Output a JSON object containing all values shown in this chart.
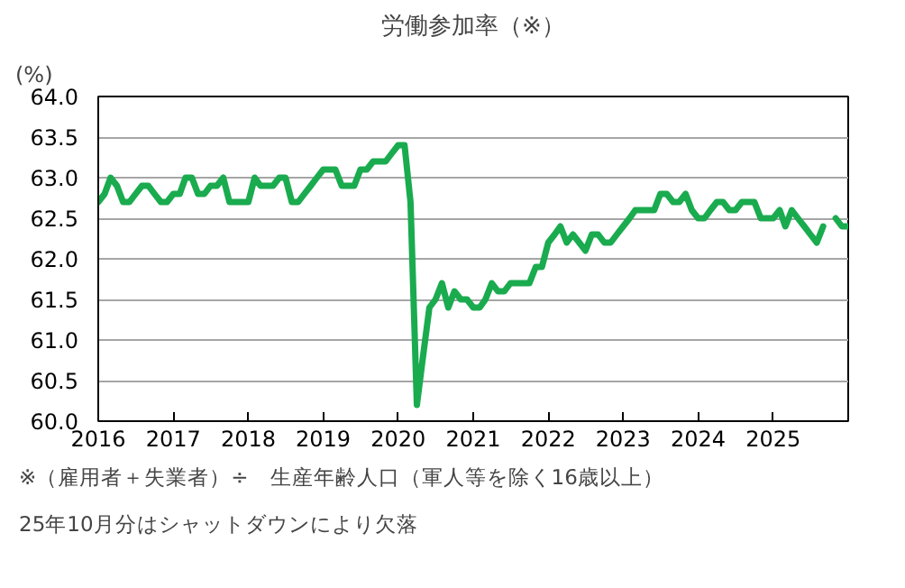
{
  "chart_data": {
    "type": "line",
    "title": "労働参加率（※）",
    "ylabel": "(%)",
    "x": [
      "2016-01",
      "2016-02",
      "2016-03",
      "2016-04",
      "2016-05",
      "2016-06",
      "2016-07",
      "2016-08",
      "2016-09",
      "2016-10",
      "2016-11",
      "2016-12",
      "2017-01",
      "2017-02",
      "2017-03",
      "2017-04",
      "2017-05",
      "2017-06",
      "2017-07",
      "2017-08",
      "2017-09",
      "2017-10",
      "2017-11",
      "2017-12",
      "2018-01",
      "2018-02",
      "2018-03",
      "2018-04",
      "2018-05",
      "2018-06",
      "2018-07",
      "2018-08",
      "2018-09",
      "2018-10",
      "2018-11",
      "2018-12",
      "2019-01",
      "2019-02",
      "2019-03",
      "2019-04",
      "2019-05",
      "2019-06",
      "2019-07",
      "2019-08",
      "2019-09",
      "2019-10",
      "2019-11",
      "2019-12",
      "2020-01",
      "2020-02",
      "2020-03",
      "2020-04",
      "2020-05",
      "2020-06",
      "2020-07",
      "2020-08",
      "2020-09",
      "2020-10",
      "2020-11",
      "2020-12",
      "2021-01",
      "2021-02",
      "2021-03",
      "2021-04",
      "2021-05",
      "2021-06",
      "2021-07",
      "2021-08",
      "2021-09",
      "2021-10",
      "2021-11",
      "2021-12",
      "2022-01",
      "2022-02",
      "2022-03",
      "2022-04",
      "2022-05",
      "2022-06",
      "2022-07",
      "2022-08",
      "2022-09",
      "2022-10",
      "2022-11",
      "2022-12",
      "2023-01",
      "2023-02",
      "2023-03",
      "2023-04",
      "2023-05",
      "2023-06",
      "2023-07",
      "2023-08",
      "2023-09",
      "2023-10",
      "2023-11",
      "2023-12",
      "2024-01",
      "2024-02",
      "2024-03",
      "2024-04",
      "2024-05",
      "2024-06",
      "2024-07",
      "2024-08",
      "2024-09",
      "2024-10",
      "2024-11",
      "2024-12",
      "2025-01",
      "2025-02",
      "2025-03",
      "2025-04",
      "2025-05",
      "2025-06",
      "2025-07",
      "2025-08",
      "2025-09",
      "2025-10",
      "2025-11",
      "2025-12",
      "2026-01"
    ],
    "series": [
      {
        "color": "#1aab4f",
        "values": [
          62.7,
          62.8,
          63.0,
          62.9,
          62.7,
          62.7,
          62.8,
          62.9,
          62.9,
          62.8,
          62.7,
          62.7,
          62.8,
          62.8,
          63.0,
          63.0,
          62.8,
          62.8,
          62.9,
          62.9,
          63.0,
          62.7,
          62.7,
          62.7,
          62.7,
          63.0,
          62.9,
          62.9,
          62.9,
          63.0,
          63.0,
          62.7,
          62.7,
          62.8,
          62.9,
          63.0,
          63.1,
          63.1,
          63.1,
          62.9,
          62.9,
          62.9,
          63.1,
          63.1,
          63.2,
          63.2,
          63.2,
          63.3,
          63.4,
          63.4,
          62.7,
          60.2,
          60.8,
          61.4,
          61.5,
          61.7,
          61.4,
          61.6,
          61.5,
          61.5,
          61.4,
          61.4,
          61.5,
          61.7,
          61.6,
          61.6,
          61.7,
          61.7,
          61.7,
          61.7,
          61.9,
          61.9,
          62.2,
          62.3,
          62.4,
          62.2,
          62.3,
          62.2,
          62.1,
          62.3,
          62.3,
          62.2,
          62.2,
          62.3,
          62.4,
          62.5,
          62.6,
          62.6,
          62.6,
          62.6,
          62.8,
          62.8,
          62.7,
          62.7,
          62.8,
          62.6,
          62.5,
          62.5,
          62.6,
          62.7,
          62.7,
          62.6,
          62.6,
          62.7,
          62.7,
          62.7,
          62.5,
          62.5,
          62.5,
          62.6,
          62.4,
          62.6,
          62.5,
          62.4,
          62.3,
          62.2,
          62.4,
          null,
          62.5,
          62.4,
          62.4
        ]
      }
    ],
    "xlim": [
      "2016-01",
      "2026-01"
    ],
    "xticks": [
      {
        "value": "2016-01",
        "label": "2016"
      },
      {
        "value": "2017-01",
        "label": "2017"
      },
      {
        "value": "2018-01",
        "label": "2018"
      },
      {
        "value": "2019-01",
        "label": "2019"
      },
      {
        "value": "2020-01",
        "label": "2020"
      },
      {
        "value": "2021-01",
        "label": "2021"
      },
      {
        "value": "2022-01",
        "label": "2022"
      },
      {
        "value": "2023-01",
        "label": "2023"
      },
      {
        "value": "2024-01",
        "label": "2024"
      },
      {
        "value": "2025-01",
        "label": "2025"
      },
      {
        "value": "2026-01",
        "label": null
      }
    ],
    "ylim": [
      60.0,
      64.0
    ],
    "yticks": [
      {
        "value": 60.0,
        "label": "60.0"
      },
      {
        "value": 60.5,
        "label": "60.5"
      },
      {
        "value": 61.0,
        "label": "61.0"
      },
      {
        "value": 61.5,
        "label": "61.5"
      },
      {
        "value": 62.0,
        "label": "62.0"
      },
      {
        "value": 62.5,
        "label": "62.5"
      },
      {
        "value": 63.0,
        "label": "63.0"
      },
      {
        "value": 63.5,
        "label": "63.5"
      },
      {
        "value": 64.0,
        "label": "64.0"
      }
    ],
    "grid": "y",
    "marker": "none",
    "line_style": "solid",
    "annotations": [
      "※（雇用者＋失業者）÷　生産年齢人口（軍人等を除く16歳以上）",
      "25年10月分はシャットダウンにより欠落"
    ]
  }
}
